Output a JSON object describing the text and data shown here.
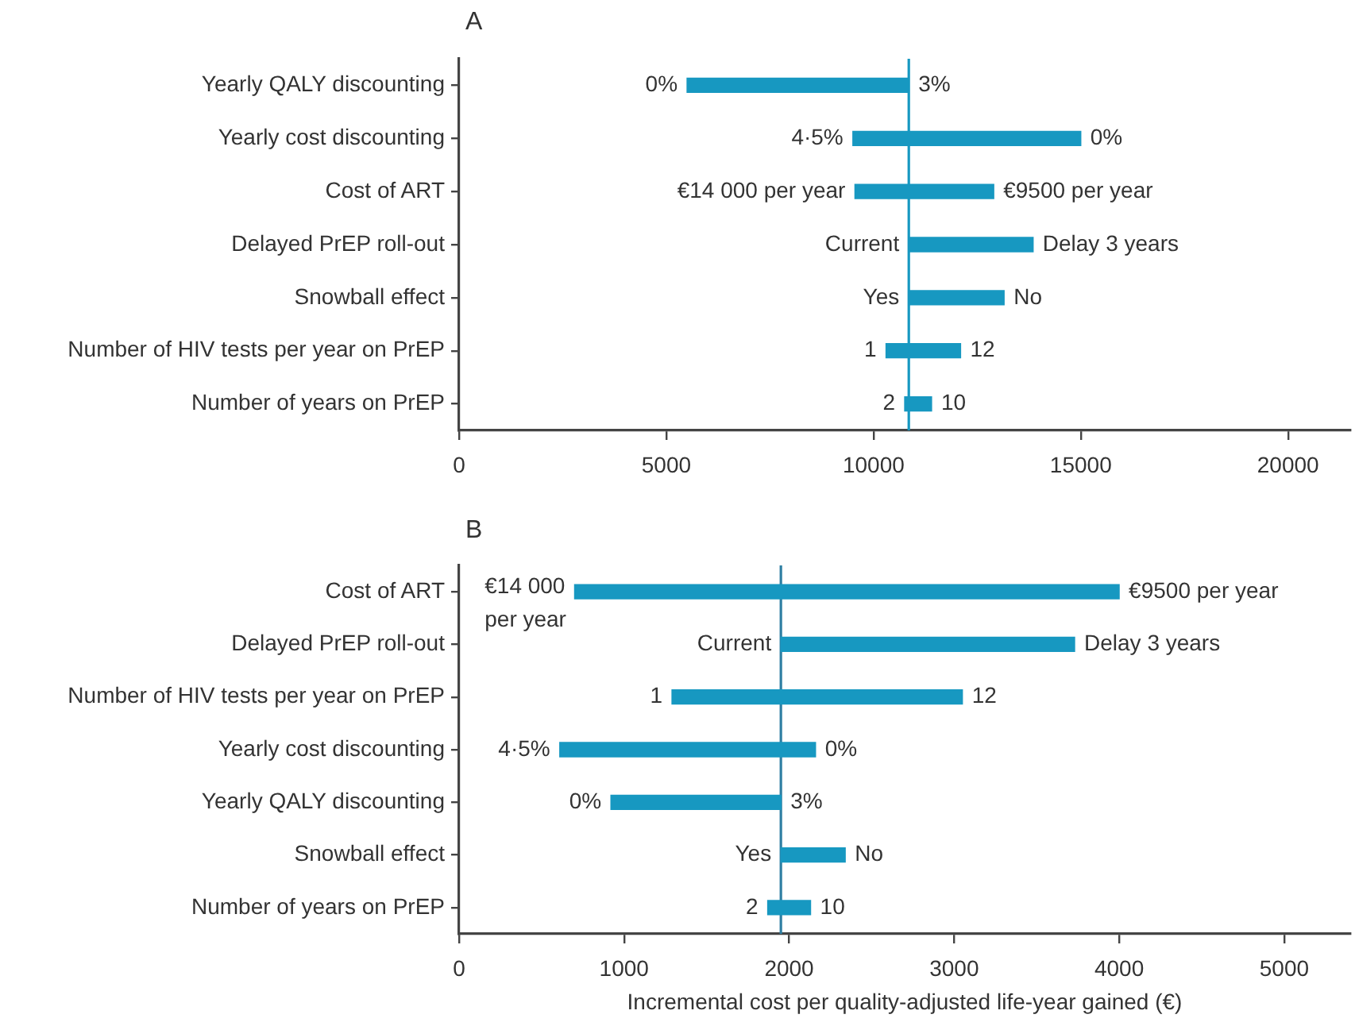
{
  "chart_data": [
    {
      "type": "bar",
      "orientation": "horizontal",
      "title": "A",
      "categories": [
        "Yearly QALY discounting",
        "Yearly cost discounting",
        "Cost of ART",
        "Delayed PrEP roll-out",
        "Snowball effect",
        "Number of HIV tests per year on PrEP",
        "Number of years on PrEP"
      ],
      "base": [
        5500,
        9500,
        9550,
        10850,
        10850,
        10300,
        10750
      ],
      "values": [
        5350,
        5500,
        3350,
        3000,
        2300,
        1800,
        650
      ],
      "color": "#1798c1",
      "xlim": [
        0,
        21500
      ],
      "xticks": [
        0,
        5000,
        10000,
        15000,
        20000
      ],
      "ref_lines": [
        {
          "axis": "x",
          "value": 10850,
          "color": "#1798c1"
        }
      ],
      "annotations": [
        {
          "text": "0%",
          "x": 5500,
          "y": "Yearly QALY discounting"
        },
        {
          "text": "3%",
          "x": 10850,
          "y": "Yearly QALY discounting"
        },
        {
          "text": "4·5%",
          "x": 9500,
          "y": "Yearly cost discounting"
        },
        {
          "text": "0%",
          "x": 15000,
          "y": "Yearly cost discounting"
        },
        {
          "text": "€14 000 per year",
          "x": 9550,
          "y": "Cost of ART"
        },
        {
          "text": "€9500 per year",
          "x": 12900,
          "y": "Cost of ART"
        },
        {
          "text": "Current",
          "x": 10850,
          "y": "Delayed PrEP roll-out"
        },
        {
          "text": "Delay 3 years",
          "x": 13850,
          "y": "Delayed PrEP roll-out"
        },
        {
          "text": "Yes",
          "x": 10850,
          "y": "Snowball effect"
        },
        {
          "text": "No",
          "x": 13150,
          "y": "Snowball effect"
        },
        {
          "text": "1",
          "x": 10300,
          "y": "Number of HIV tests per year on PrEP"
        },
        {
          "text": "12",
          "x": 12100,
          "y": "Number of HIV tests per year on PrEP"
        },
        {
          "text": "2",
          "x": 10750,
          "y": "Number of years on PrEP"
        },
        {
          "text": "10",
          "x": 11400,
          "y": "Number of years on PrEP"
        }
      ]
    },
    {
      "type": "bar",
      "orientation": "horizontal",
      "title": "B",
      "xlabel": "Incremental cost per quality-adjusted life-year gained (€)",
      "categories": [
        "Cost of ART",
        "Delayed PrEP roll-out",
        "Number of HIV tests per year on PrEP",
        "Yearly cost discounting",
        "Yearly QALY discounting",
        "Snowball effect",
        "Number of years on PrEP"
      ],
      "base": [
        700,
        1950,
        1290,
        610,
        920,
        1950,
        1870
      ],
      "values": [
        3300,
        1780,
        1760,
        1550,
        1030,
        390,
        260
      ],
      "color": "#1798c1",
      "xlim": [
        0,
        5400
      ],
      "xticks": [
        0,
        1000,
        2000,
        3000,
        4000,
        5000
      ],
      "ref_lines": [
        {
          "axis": "x",
          "value": 1950,
          "color": "#2f7fa3"
        }
      ],
      "annotations": [
        {
          "text": "€14 000 per year",
          "x": 700,
          "y": "Cost of ART"
        },
        {
          "text": "€9500 per year",
          "x": 4000,
          "y": "Cost of ART"
        },
        {
          "text": "Current",
          "x": 1950,
          "y": "Delayed PrEP roll-out"
        },
        {
          "text": "Delay 3 years",
          "x": 3730,
          "y": "Delayed PrEP roll-out"
        },
        {
          "text": "1",
          "x": 1290,
          "y": "Number of HIV tests per year on PrEP"
        },
        {
          "text": "12",
          "x": 3050,
          "y": "Number of HIV tests per year on PrEP"
        },
        {
          "text": "4·5%",
          "x": 610,
          "y": "Yearly cost discounting"
        },
        {
          "text": "0%",
          "x": 2160,
          "y": "Yearly cost discounting"
        },
        {
          "text": "0%",
          "x": 920,
          "y": "Yearly QALY discounting"
        },
        {
          "text": "3%",
          "x": 1950,
          "y": "Yearly QALY discounting"
        },
        {
          "text": "Yes",
          "x": 1950,
          "y": "Snowball effect"
        },
        {
          "text": "No",
          "x": 2340,
          "y": "Snowball effect"
        },
        {
          "text": "2",
          "x": 1870,
          "y": "Number of years on PrEP"
        },
        {
          "text": "10",
          "x": 2130,
          "y": "Number of years on PrEP"
        }
      ]
    }
  ]
}
